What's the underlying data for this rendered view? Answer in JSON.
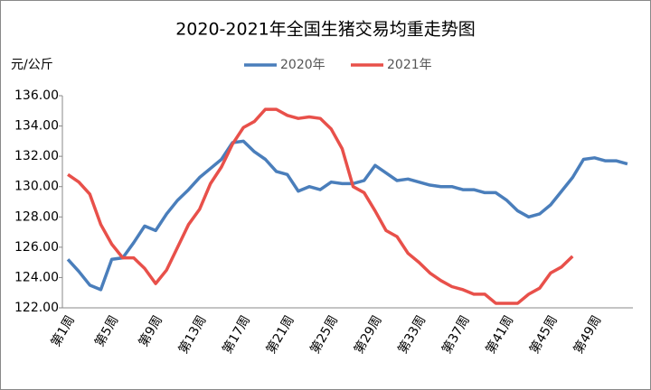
{
  "chart_data": {
    "type": "line",
    "title": "2020-2021年全国生猪交易均重走势图",
    "y_label": "元/公斤",
    "categories": [
      "第1周",
      null,
      null,
      null,
      "第5周",
      null,
      null,
      null,
      "第9周",
      null,
      null,
      null,
      "第13周",
      null,
      null,
      null,
      "第17周",
      null,
      null,
      null,
      "第21周",
      null,
      null,
      null,
      "第25周",
      null,
      null,
      null,
      "第29周",
      null,
      null,
      null,
      "第33周",
      null,
      null,
      null,
      "第37周",
      null,
      null,
      null,
      "第41周",
      null,
      null,
      null,
      "第45周",
      null,
      null,
      null,
      "第49周",
      null,
      null,
      null
    ],
    "series": [
      {
        "name": "2020年",
        "color": "#4a7ebb",
        "values": [
          125.2,
          124.4,
          123.5,
          123.2,
          125.2,
          125.3,
          126.3,
          127.4,
          127.1,
          128.2,
          129.1,
          129.8,
          130.6,
          131.2,
          131.8,
          132.9,
          133.0,
          132.3,
          131.8,
          131.0,
          130.8,
          129.7,
          130.0,
          129.8,
          130.3,
          130.2,
          130.2,
          130.4,
          131.4,
          130.9,
          130.4,
          130.5,
          130.3,
          130.1,
          130.0,
          130.0,
          129.8,
          129.8,
          129.6,
          129.6,
          129.1,
          128.4,
          128.0,
          128.2,
          128.8,
          129.7,
          130.6,
          131.8,
          131.9,
          131.7,
          131.7,
          131.5
        ]
      },
      {
        "name": "2021年",
        "color": "#e8504a",
        "values": [
          130.8,
          130.3,
          129.5,
          127.5,
          126.2,
          125.3,
          125.3,
          124.6,
          123.6,
          124.5,
          126.0,
          127.5,
          128.5,
          130.2,
          131.3,
          132.8,
          133.9,
          134.3,
          135.1,
          135.1,
          134.7,
          134.5,
          134.6,
          134.5,
          133.8,
          132.5,
          130.0,
          129.6,
          128.4,
          127.1,
          126.7,
          125.6,
          125.0,
          124.3,
          123.8,
          123.4,
          123.2,
          122.9,
          122.9,
          122.3,
          122.3,
          122.3,
          122.9,
          123.3,
          124.3,
          124.7,
          125.4,
          null,
          null,
          null,
          null,
          null
        ]
      }
    ],
    "ylim": [
      122,
      136
    ],
    "yticks": [
      {
        "value": 122,
        "label": "122.00"
      },
      {
        "value": 124,
        "label": "124.00"
      },
      {
        "value": 126,
        "label": "126.00"
      },
      {
        "value": 128,
        "label": "128.00"
      },
      {
        "value": 130,
        "label": "130.00"
      },
      {
        "value": 132,
        "label": "132.00"
      },
      {
        "value": 134,
        "label": "134.00"
      },
      {
        "value": 136,
        "label": "136.00"
      }
    ],
    "grid": false,
    "legend": "top"
  }
}
